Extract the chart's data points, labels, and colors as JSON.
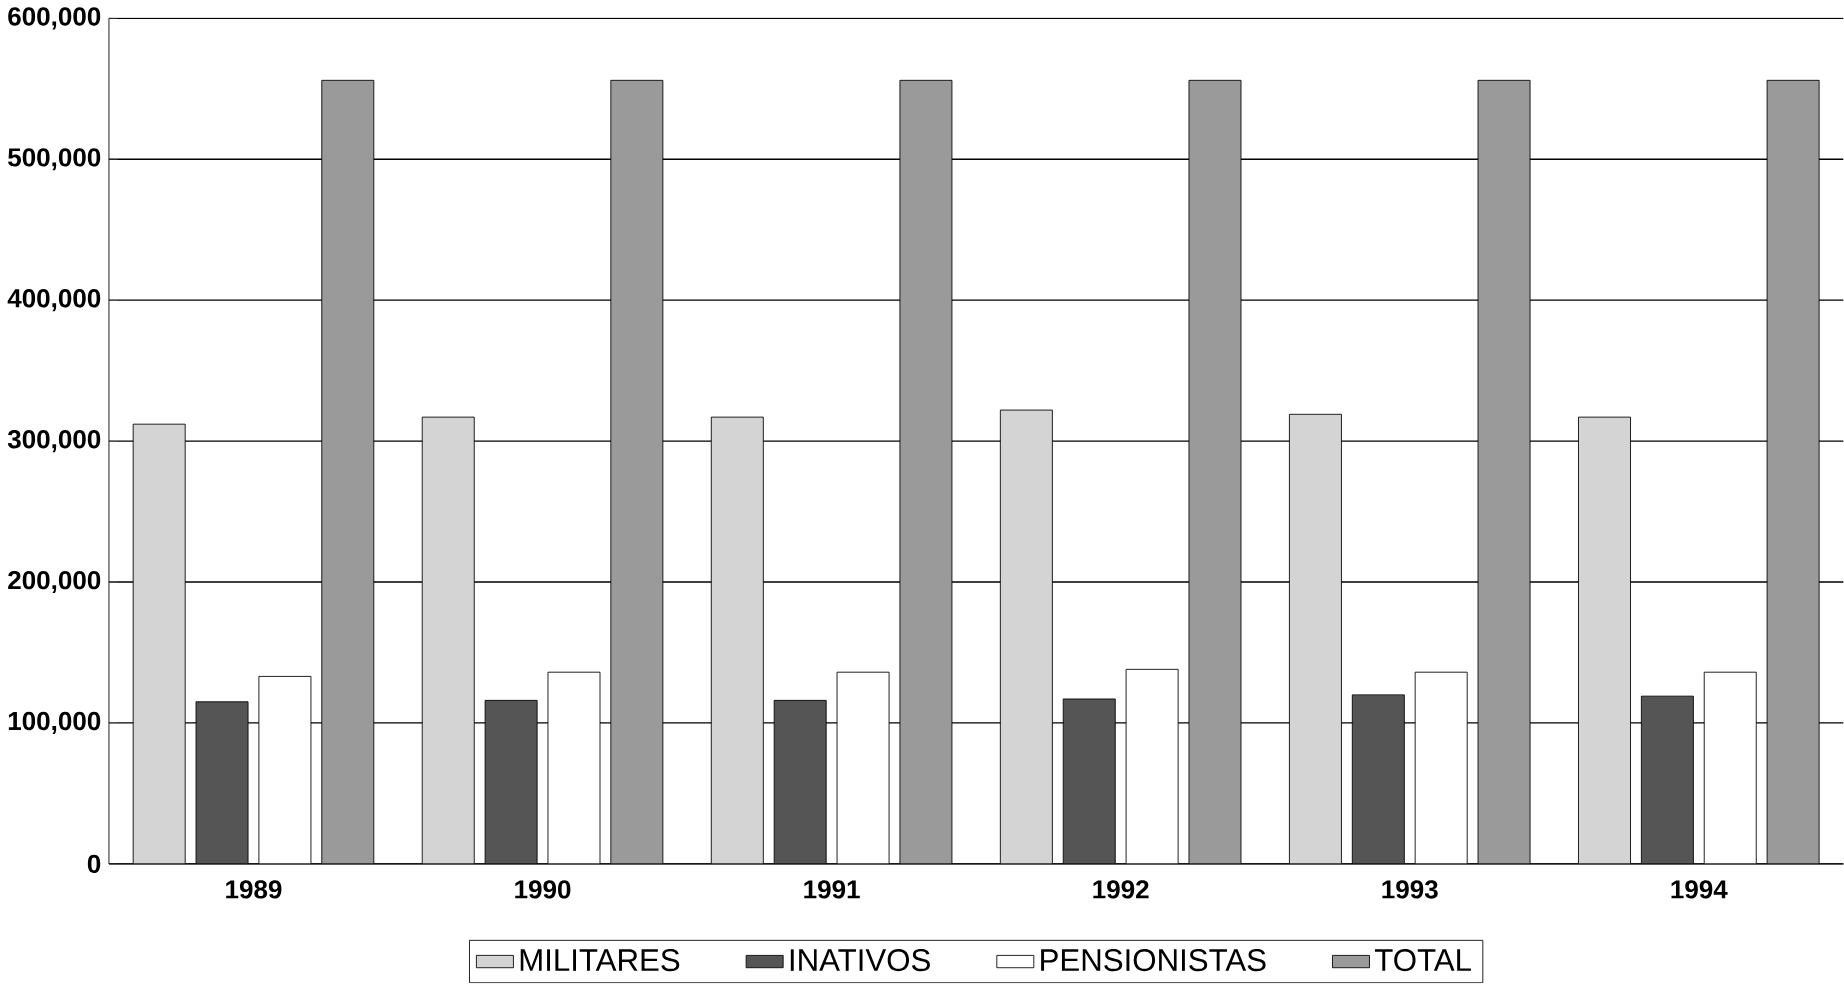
{
  "chart_data": {
    "type": "bar",
    "categories": [
      "1989",
      "1990",
      "1991",
      "1992",
      "1993",
      "1994"
    ],
    "series": [
      {
        "name": "MILITARES",
        "color": "#d4d4d4",
        "values": [
          312000,
          317000,
          317000,
          322000,
          319000,
          317000
        ]
      },
      {
        "name": "INATIVOS",
        "color": "#555555",
        "values": [
          115000,
          116000,
          116000,
          117000,
          120000,
          119000
        ]
      },
      {
        "name": "PENSIONISTAS",
        "color": "#ffffff",
        "values": [
          133000,
          136000,
          136000,
          138000,
          136000,
          136000
        ]
      },
      {
        "name": "TOTAL",
        "color": "#9a9a9a",
        "values": [
          556000,
          556000,
          556000,
          556000,
          556000,
          556000
        ]
      }
    ],
    "ylim": [
      0,
      600000
    ],
    "yticks": [
      {
        "value": 0,
        "label": "0"
      },
      {
        "value": 100000,
        "label": "100,000"
      },
      {
        "value": 200000,
        "label": "200,000"
      },
      {
        "value": 300000,
        "label": "300,000"
      },
      {
        "value": 400000,
        "label": "400,000"
      },
      {
        "value": 500000,
        "label": "500,000"
      },
      {
        "value": 600000,
        "label": "600,000"
      }
    ],
    "grid": "y",
    "legend": "bottom"
  }
}
